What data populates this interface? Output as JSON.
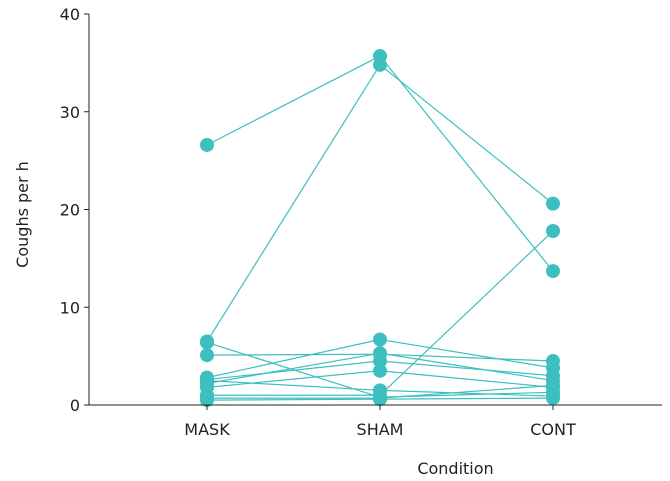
{
  "chart_data": {
    "type": "line",
    "xlabel": "Condition",
    "ylabel": "Coughs per h",
    "categories": [
      "MASK",
      "SHAM",
      "CONT"
    ],
    "ylim": [
      0,
      40
    ],
    "yticks": [
      0,
      10,
      20,
      30,
      40
    ],
    "grid": false,
    "color": "#3dbfbf",
    "series": [
      {
        "values": [
          26.6,
          35.7,
          13.7
        ]
      },
      {
        "values": [
          6.5,
          34.8,
          20.6
        ]
      },
      {
        "values": [
          1.0,
          1.0,
          17.8
        ]
      },
      {
        "values": [
          5.1,
          5.2,
          4.5
        ]
      },
      {
        "values": [
          2.8,
          6.7,
          3.8
        ]
      },
      {
        "values": [
          2.6,
          4.5,
          3.0
        ]
      },
      {
        "values": [
          2.2,
          5.3,
          2.5
        ]
      },
      {
        "values": [
          1.8,
          3.5,
          1.8
        ]
      },
      {
        "values": [
          2.5,
          1.5,
          0.9
        ]
      },
      {
        "values": [
          6.4,
          0.8,
          1.3
        ]
      },
      {
        "values": [
          0.7,
          0.7,
          2.0
        ]
      },
      {
        "values": [
          0.5,
          0.6,
          0.7
        ]
      }
    ]
  }
}
